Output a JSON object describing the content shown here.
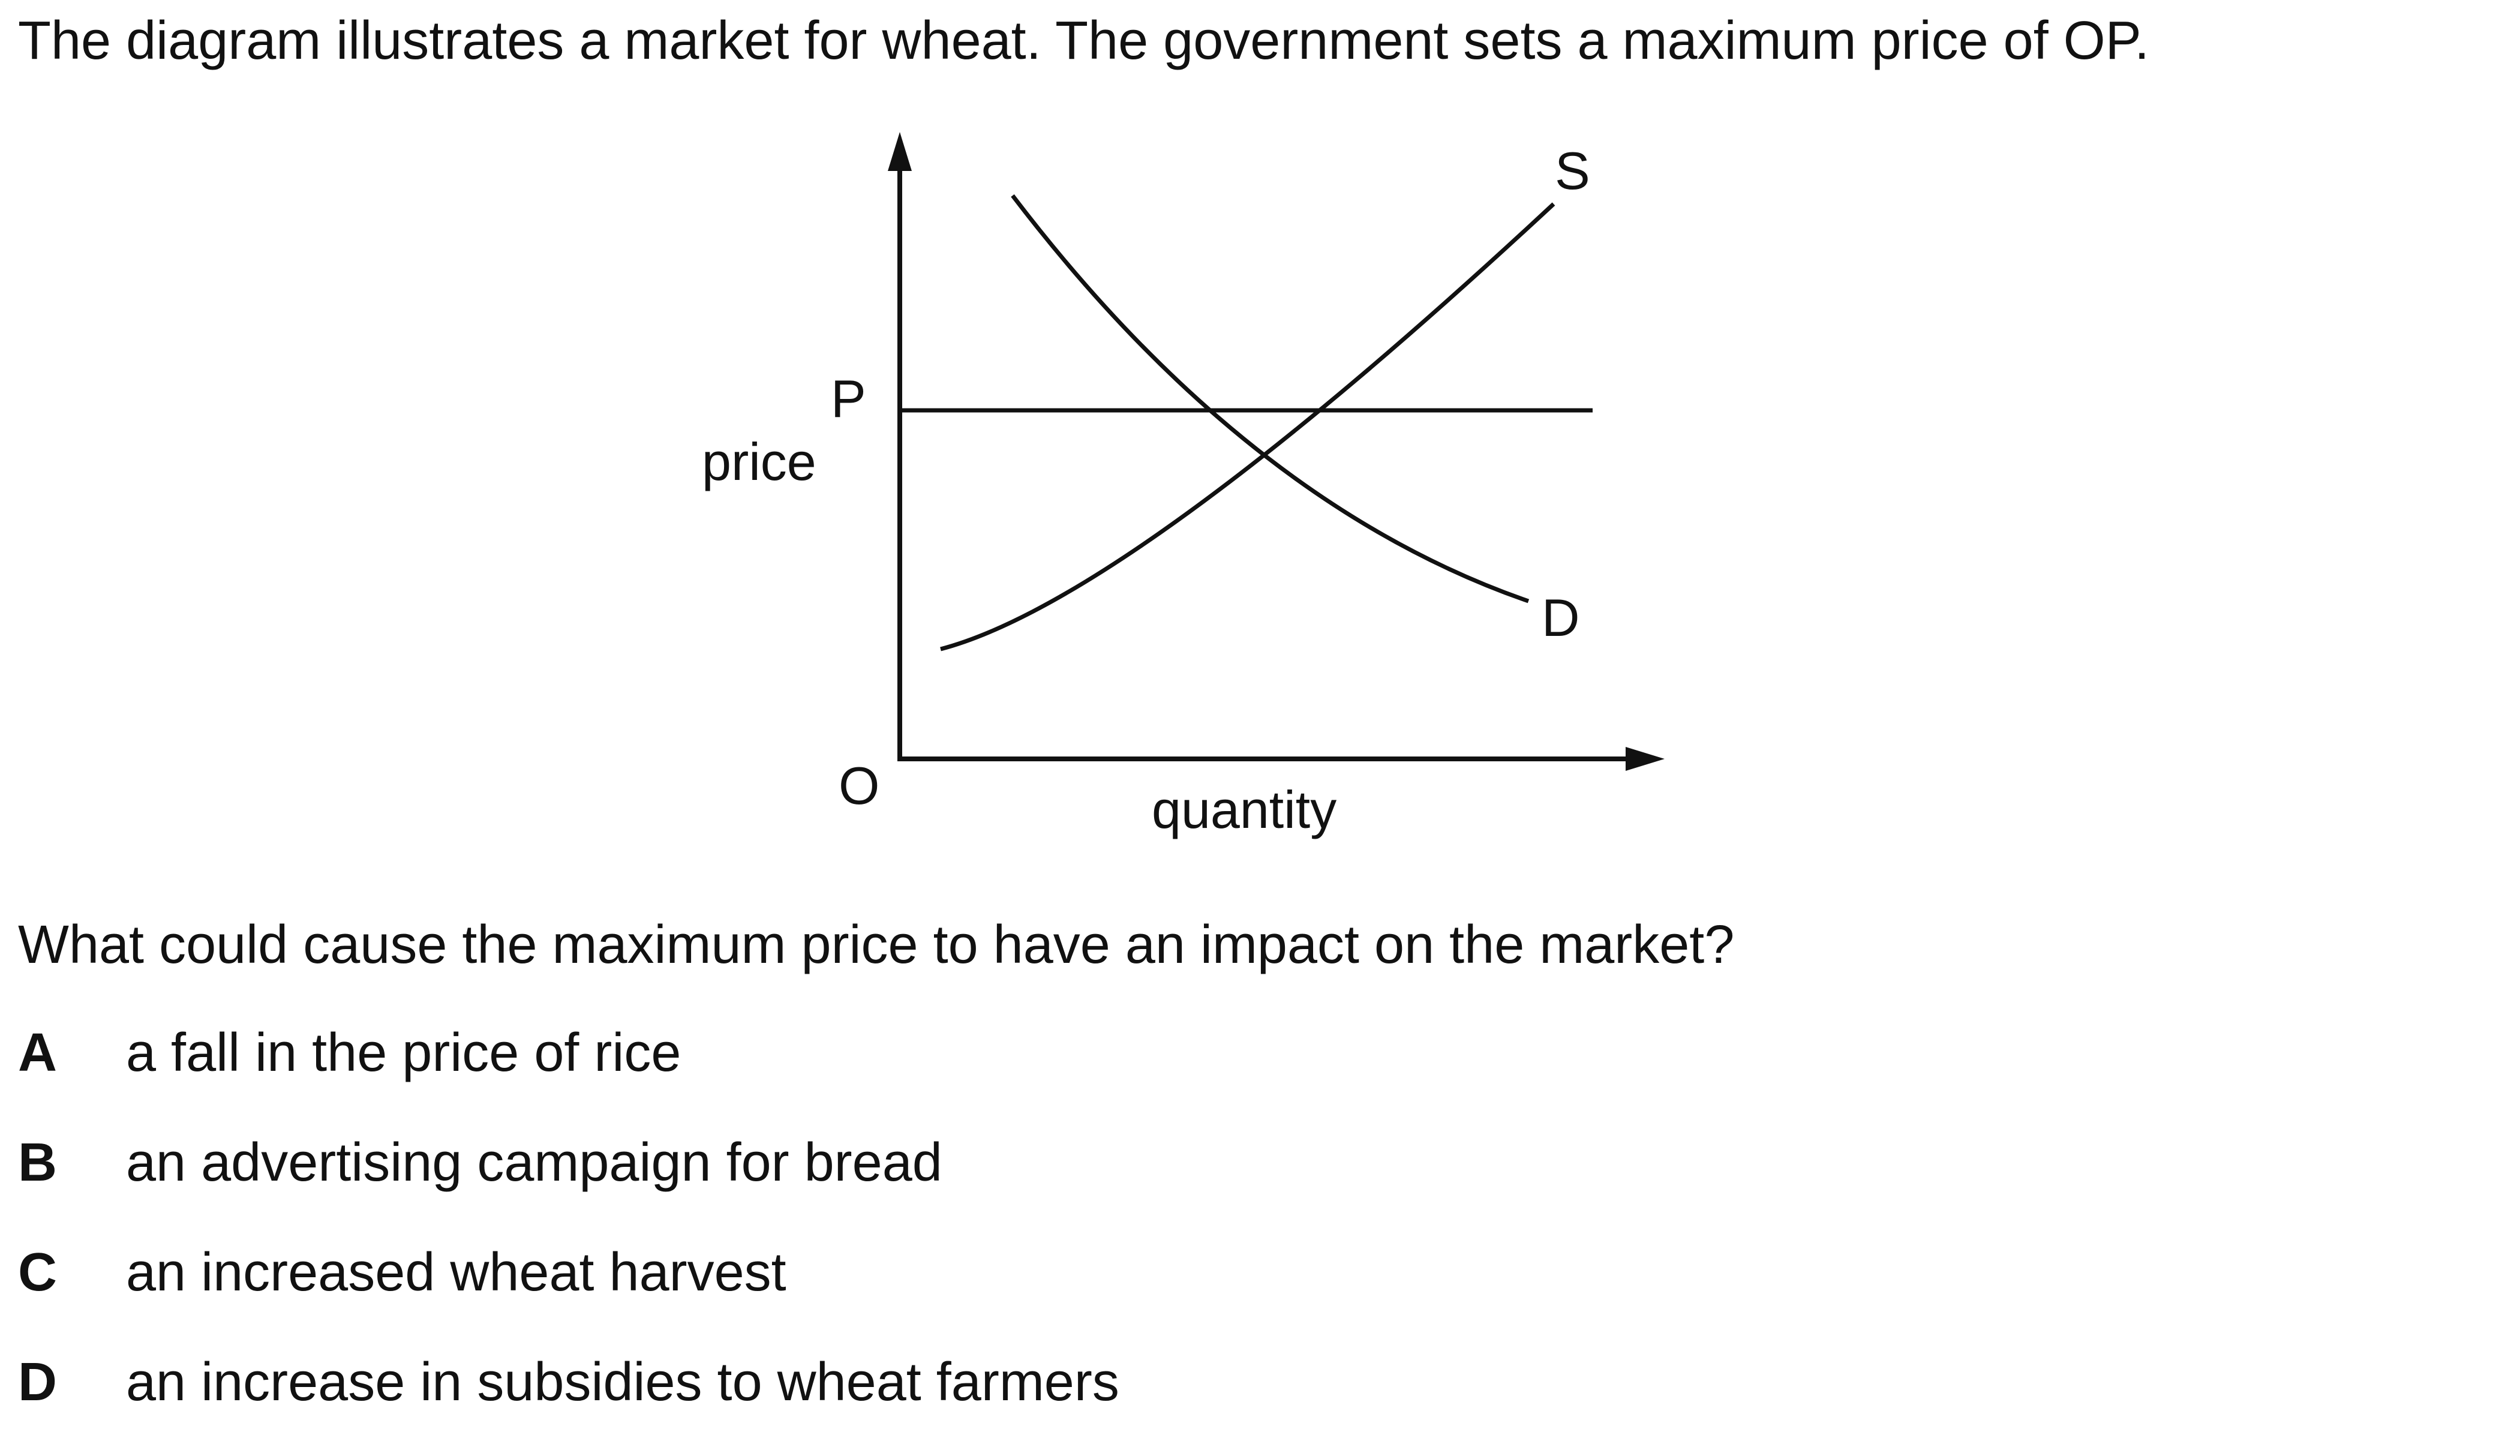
{
  "intro": "The diagram illustrates a market for wheat. The government sets a maximum price of OP.",
  "diagram": {
    "y_axis_label": "price",
    "x_axis_label": "quantity",
    "origin_label": "O",
    "price_level_label": "P",
    "supply_label": "S",
    "demand_label": "D"
  },
  "question": "What could cause the maximum price to have an impact on the market?",
  "options": [
    {
      "letter": "A",
      "text": "a fall in the price of rice"
    },
    {
      "letter": "B",
      "text": "an advertising campaign for bread"
    },
    {
      "letter": "C",
      "text": "an increased wheat harvest"
    },
    {
      "letter": "D",
      "text": "an increase in subsidies to wheat farmers"
    }
  ]
}
